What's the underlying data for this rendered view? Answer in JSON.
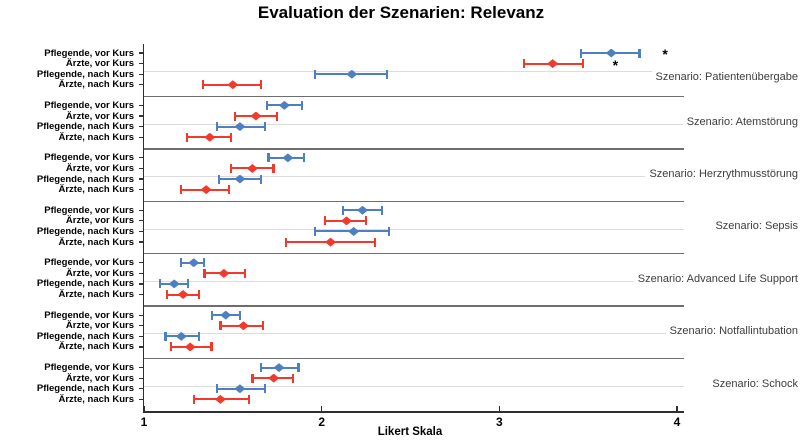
{
  "chart_data": {
    "type": "scatter",
    "subtype": "horizontal-dot-with-error-bars (forest plot)",
    "title": "Evaluation der Szenarien: Relevanz",
    "xlabel": "Likert Skala",
    "xlim": [
      1,
      4
    ],
    "xticks": [
      "1",
      "2",
      "3",
      "4"
    ],
    "grid": "light horizontal gridline per scenario block, dark separators between blocks",
    "legend_position": "none",
    "row_labels": [
      "Pflegende, vor Kurs",
      "Ärzte, vor Kurs",
      "Pflegende, nach Kurs",
      "Ärzte, nach Kurs"
    ],
    "colors": {
      "blue": "#4e7fc1",
      "red": "#f13a2b"
    },
    "significance_marker": "*",
    "scenarios": [
      {
        "label": "Szenario: Patientenübergabe",
        "rows": [
          {
            "group": "Pflegende, vor Kurs",
            "color": "blue",
            "mean": 3.63,
            "lo": 3.46,
            "hi": 3.79,
            "sig": "*",
            "sig_x": 3.94
          },
          {
            "group": "Ärzte, vor Kurs",
            "color": "red",
            "mean": 3.3,
            "lo": 3.14,
            "hi": 3.47,
            "sig": "*",
            "sig_x": 3.66
          },
          {
            "group": "Pflegende, nach Kurs",
            "color": "blue",
            "mean": 2.17,
            "lo": 1.96,
            "hi": 2.37
          },
          {
            "group": "Ärzte, nach Kurs",
            "color": "red",
            "mean": 1.5,
            "lo": 1.33,
            "hi": 1.66
          }
        ]
      },
      {
        "label": "Szenario: Atemstörung",
        "rows": [
          {
            "group": "Pflegende, vor Kurs",
            "color": "blue",
            "mean": 1.79,
            "lo": 1.69,
            "hi": 1.89
          },
          {
            "group": "Ärzte, vor Kurs",
            "color": "red",
            "mean": 1.63,
            "lo": 1.51,
            "hi": 1.75
          },
          {
            "group": "Pflegende, nach Kurs",
            "color": "blue",
            "mean": 1.54,
            "lo": 1.41,
            "hi": 1.68
          },
          {
            "group": "Ärzte, nach Kurs",
            "color": "red",
            "mean": 1.37,
            "lo": 1.24,
            "hi": 1.49
          }
        ]
      },
      {
        "label": "Szenario: Herzrythmusstörung",
        "rows": [
          {
            "group": "Pflegende, vor Kurs",
            "color": "blue",
            "mean": 1.81,
            "lo": 1.7,
            "hi": 1.9
          },
          {
            "group": "Ärzte, vor Kurs",
            "color": "red",
            "mean": 1.61,
            "lo": 1.49,
            "hi": 1.73
          },
          {
            "group": "Pflegende, nach Kurs",
            "color": "blue",
            "mean": 1.54,
            "lo": 1.42,
            "hi": 1.66
          },
          {
            "group": "Ärzte, nach Kurs",
            "color": "red",
            "mean": 1.35,
            "lo": 1.21,
            "hi": 1.48
          }
        ]
      },
      {
        "label": "Szenario: Sepsis",
        "rows": [
          {
            "group": "Pflegende, vor Kurs",
            "color": "blue",
            "mean": 2.23,
            "lo": 2.12,
            "hi": 2.34
          },
          {
            "group": "Ärzte, vor Kurs",
            "color": "red",
            "mean": 2.14,
            "lo": 2.02,
            "hi": 2.25
          },
          {
            "group": "Pflegende, nach Kurs",
            "color": "blue",
            "mean": 2.18,
            "lo": 1.96,
            "hi": 2.38
          },
          {
            "group": "Ärzte, nach Kurs",
            "color": "red",
            "mean": 2.05,
            "lo": 1.8,
            "hi": 2.3
          }
        ]
      },
      {
        "label": "Szenario: Advanced Life Support",
        "rows": [
          {
            "group": "Pflegende, vor Kurs",
            "color": "blue",
            "mean": 1.28,
            "lo": 1.21,
            "hi": 1.34
          },
          {
            "group": "Ärzte, vor Kurs",
            "color": "red",
            "mean": 1.45,
            "lo": 1.34,
            "hi": 1.57
          },
          {
            "group": "Pflegende, nach Kurs",
            "color": "blue",
            "mean": 1.17,
            "lo": 1.09,
            "hi": 1.25
          },
          {
            "group": "Ärzte, nach Kurs",
            "color": "red",
            "mean": 1.22,
            "lo": 1.13,
            "hi": 1.31
          }
        ]
      },
      {
        "label": "Szenario: Notfallintubation",
        "rows": [
          {
            "group": "Pflegende, vor Kurs",
            "color": "blue",
            "mean": 1.46,
            "lo": 1.38,
            "hi": 1.54
          },
          {
            "group": "Ärzte, vor Kurs",
            "color": "red",
            "mean": 1.56,
            "lo": 1.43,
            "hi": 1.67
          },
          {
            "group": "Pflegende, nach Kurs",
            "color": "blue",
            "mean": 1.21,
            "lo": 1.12,
            "hi": 1.31
          },
          {
            "group": "Ärzte, nach Kurs",
            "color": "red",
            "mean": 1.26,
            "lo": 1.15,
            "hi": 1.38
          }
        ]
      },
      {
        "label": "Szenario: Schock",
        "rows": [
          {
            "group": "Pflegende, vor Kurs",
            "color": "blue",
            "mean": 1.76,
            "lo": 1.66,
            "hi": 1.87
          },
          {
            "group": "Ärzte, vor Kurs",
            "color": "red",
            "mean": 1.73,
            "lo": 1.61,
            "hi": 1.84
          },
          {
            "group": "Pflegende, nach Kurs",
            "color": "blue",
            "mean": 1.54,
            "lo": 1.41,
            "hi": 1.68
          },
          {
            "group": "Ärzte, nach Kurs",
            "color": "red",
            "mean": 1.43,
            "lo": 1.28,
            "hi": 1.59
          }
        ]
      }
    ]
  }
}
